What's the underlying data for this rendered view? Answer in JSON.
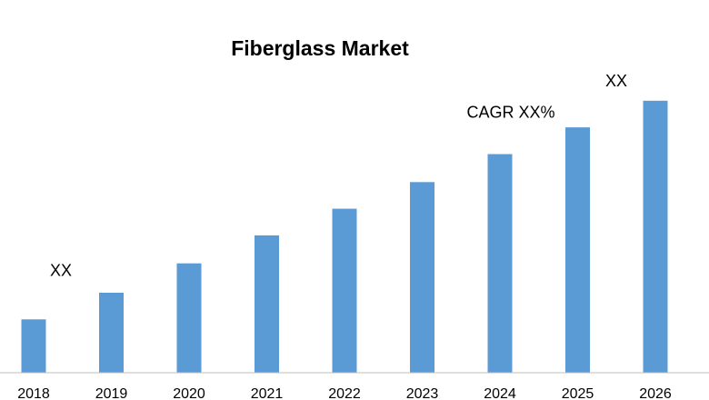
{
  "chart_data": {
    "type": "bar",
    "title": "Fiberglass Market",
    "xlabel": "",
    "ylabel": "",
    "categories": [
      "2018",
      "2019",
      "2020",
      "2021",
      "2022",
      "2023",
      "2024",
      "2025",
      "2026"
    ],
    "values": [
      2,
      3,
      4.1,
      5.15,
      6.15,
      7.15,
      8.2,
      9.2,
      10.2
    ],
    "ylim": [
      0,
      10.5
    ],
    "grid": false,
    "bar_color": "#5B9BD5",
    "annotations": [
      {
        "text": "XX",
        "category": "2018"
      },
      {
        "text": "CAGR XX%",
        "category": "2024"
      },
      {
        "text": "XX",
        "category": "2026"
      }
    ]
  }
}
